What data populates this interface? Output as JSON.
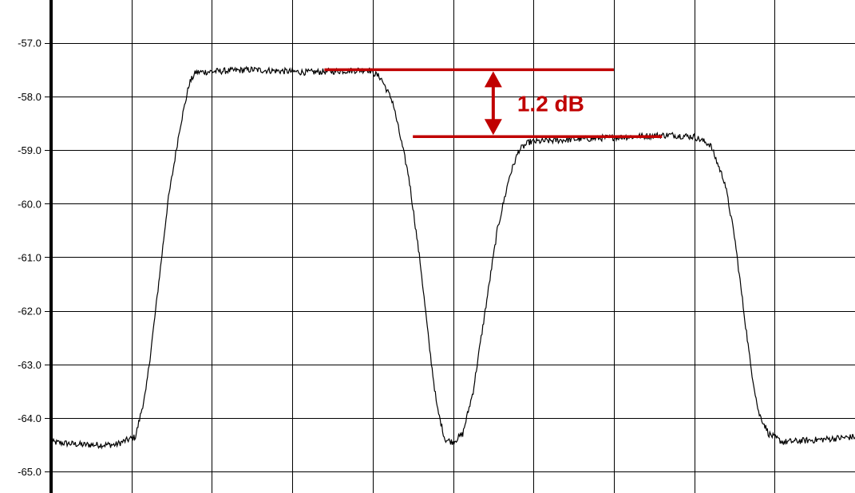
{
  "chart_data": {
    "type": "line",
    "title": "",
    "xlabel": "",
    "ylabel": "",
    "ylim": [
      -65.4,
      -56.2
    ],
    "xlim": [
      0,
      1000
    ],
    "grid": true,
    "y_ticks": [
      -57.0,
      -58.0,
      -59.0,
      -60.0,
      -61.0,
      -62.0,
      -63.0,
      -64.0,
      -65.0
    ],
    "y_tick_labels": [
      "-57.0",
      "-58.0",
      "-59.0",
      "-60.0",
      "-61.0",
      "-62.0",
      "-63.0",
      "-64.0",
      "-65.0"
    ],
    "x_gridlines": 10,
    "series": [
      {
        "color": "#000000",
        "points": [
          [
            0,
            -64.45
          ],
          [
            40,
            -64.5
          ],
          [
            80,
            -64.5
          ],
          [
            105,
            -64.35
          ],
          [
            118,
            -63.5
          ],
          [
            130,
            -62.0
          ],
          [
            145,
            -60.0
          ],
          [
            160,
            -58.6
          ],
          [
            172,
            -57.75
          ],
          [
            180,
            -57.55
          ],
          [
            250,
            -57.5
          ],
          [
            320,
            -57.55
          ],
          [
            395,
            -57.5
          ],
          [
            410,
            -57.65
          ],
          [
            425,
            -58.1
          ],
          [
            445,
            -59.5
          ],
          [
            460,
            -61.2
          ],
          [
            470,
            -62.6
          ],
          [
            480,
            -63.8
          ],
          [
            490,
            -64.4
          ],
          [
            500,
            -64.45
          ],
          [
            512,
            -64.3
          ],
          [
            525,
            -63.5
          ],
          [
            540,
            -62.0
          ],
          [
            555,
            -60.5
          ],
          [
            570,
            -59.5
          ],
          [
            582,
            -59.0
          ],
          [
            595,
            -58.85
          ],
          [
            650,
            -58.8
          ],
          [
            720,
            -58.75
          ],
          [
            770,
            -58.72
          ],
          [
            800,
            -58.75
          ],
          [
            820,
            -58.9
          ],
          [
            838,
            -59.6
          ],
          [
            850,
            -60.6
          ],
          [
            860,
            -61.8
          ],
          [
            870,
            -63.0
          ],
          [
            880,
            -63.9
          ],
          [
            893,
            -64.3
          ],
          [
            910,
            -64.45
          ],
          [
            960,
            -64.4
          ],
          [
            1000,
            -64.35
          ]
        ]
      }
    ],
    "annotation": {
      "label": "1.2 dB",
      "upper_level": -57.5,
      "lower_level": -58.75,
      "upper_x": [
        340,
        700
      ],
      "lower_x": [
        450,
        760
      ],
      "arrow_x": 550,
      "color": "#c00000"
    }
  }
}
